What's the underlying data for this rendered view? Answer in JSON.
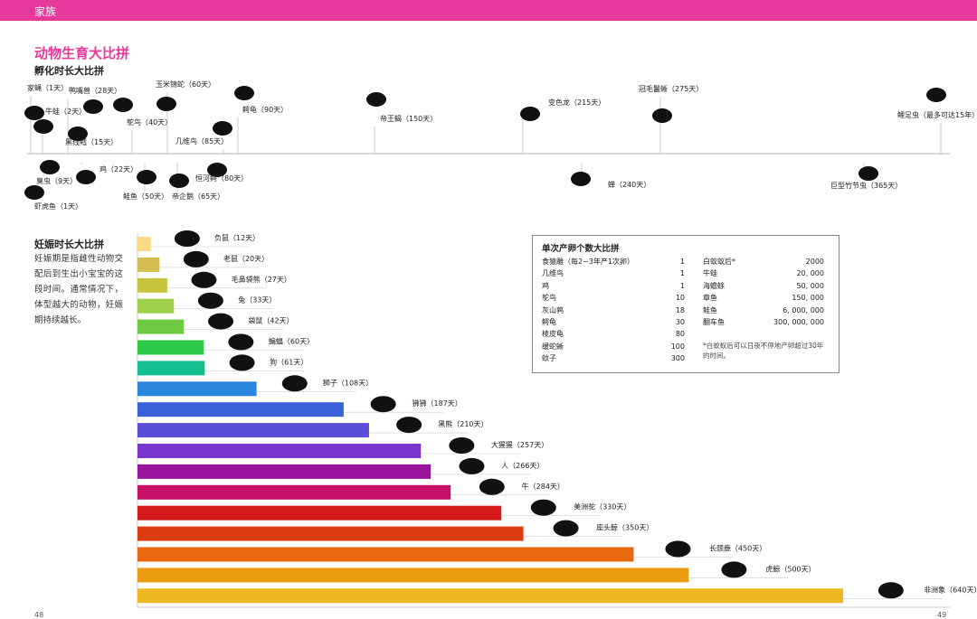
{
  "header": {
    "section": "家族",
    "title": "动物生育大比拼",
    "page_left": "48",
    "page_right": "49"
  },
  "incubation": {
    "title": "孵化时长大比拼",
    "items": [
      {
        "name": "家蝇",
        "days": "1天",
        "icon": "fly-icon"
      },
      {
        "name": "牛蛙",
        "days": "2天",
        "icon": "frog-icon"
      },
      {
        "name": "鸭嘴兽",
        "days": "28天",
        "icon": "platypus-icon"
      },
      {
        "name": "黑线鳕",
        "days": "15天",
        "icon": "fish-icon"
      },
      {
        "name": "鸵鸟",
        "days": "40天",
        "icon": "ostrich-icon"
      },
      {
        "name": "玉米锦蛇",
        "days": "60天",
        "icon": "snake-icon"
      },
      {
        "name": "几维鸟",
        "days": "85天",
        "icon": "kiwi-icon"
      },
      {
        "name": "鳄龟",
        "days": "90天",
        "icon": "turtle-icon"
      },
      {
        "name": "帝王蝎",
        "days": "150天",
        "icon": "scorpion-icon"
      },
      {
        "name": "变色龙",
        "days": "215天",
        "icon": "chameleon-icon"
      },
      {
        "name": "冠毛鬣蜥",
        "days": "275天",
        "icon": "iguana-icon"
      },
      {
        "name": "鲤足虫",
        "days": "最多可达15年",
        "icon": "shrimp-icon"
      },
      {
        "name": "臭虫",
        "days": "9天",
        "icon": "bug-icon"
      },
      {
        "name": "鸡",
        "days": "22天",
        "icon": "chicken-icon"
      },
      {
        "name": "鲑鱼",
        "days": "50天",
        "icon": "salmon-icon"
      },
      {
        "name": "帝企鹅",
        "days": "65天",
        "icon": "penguin-icon"
      },
      {
        "name": "恒河鳄",
        "days": "80天",
        "icon": "gharial-icon"
      },
      {
        "name": "蝉",
        "days": "240天",
        "icon": "cicada-icon"
      },
      {
        "name": "巨型竹节虫",
        "days": "365天",
        "icon": "stick-insect-icon"
      },
      {
        "name": "虾虎鱼",
        "days": "1天",
        "icon": "goby-icon"
      }
    ]
  },
  "gestation": {
    "title": "妊娠时长大比拼",
    "description": "妊娠期是指雌性动物交配后到生出小宝宝的这段时间。通常情况下，体型越大的动物，妊娠期持续越长。"
  },
  "chart_data": {
    "type": "bar",
    "orientation": "horizontal",
    "title": "妊娠时长大比拼",
    "categories": [
      "负鼠",
      "老鼠",
      "毛鼻袋熊",
      "兔",
      "袋鼠",
      "蝙蝠",
      "狗",
      "狮子",
      "狒狒",
      "黑熊",
      "大猩猩",
      "人",
      "牛",
      "美洲驼",
      "座头鲸",
      "长颈鹿",
      "虎鲸",
      "非洲象"
    ],
    "values": [
      12,
      20,
      27,
      33,
      42,
      60,
      61,
      108,
      187,
      210,
      257,
      266,
      284,
      330,
      350,
      450,
      500,
      640
    ],
    "labels": [
      "负鼠（12天）",
      "老鼠（20天）",
      "毛鼻袋熊（27天）",
      "兔（33天）",
      "袋鼠（42天）",
      "蝙蝠（60天）",
      "狗（61天）",
      "狮子（108天）",
      "狒狒（187天）",
      "黑熊（210天）",
      "大猩猩（257天）",
      "人（266天）",
      "牛（284天）",
      "美洲驼（330天）",
      "座头鲸（350天）",
      "长颈鹿（450天）",
      "虎鲸（500天）",
      "非洲象（640天）"
    ],
    "colors": [
      "#fbd883",
      "#d6bd52",
      "#c5c53b",
      "#9fd04a",
      "#6dc93f",
      "#2fc94a",
      "#13bf8e",
      "#2a86dc",
      "#3a62d8",
      "#5a4dd8",
      "#7a35cf",
      "#98149c",
      "#c70f6a",
      "#d51a1c",
      "#dd3c12",
      "#e8680f",
      "#ea9c10",
      "#f0b820"
    ],
    "unit": "天"
  },
  "eggs": {
    "title": "单次产卵个数大比拼",
    "left": [
      {
        "name": "食猿雕（每2~3年产1次卵）",
        "value": "1"
      },
      {
        "name": "几维鸟",
        "value": "1"
      },
      {
        "name": "鸡",
        "value": "1"
      },
      {
        "name": "鸵鸟",
        "value": "10"
      },
      {
        "name": "灰山鹑",
        "value": "18"
      },
      {
        "name": "鳄龟",
        "value": "30"
      },
      {
        "name": "棱皮龟",
        "value": "80"
      },
      {
        "name": "缓蛇蜥",
        "value": "100"
      },
      {
        "name": "蚊子",
        "value": "300"
      }
    ],
    "right": [
      {
        "name": "白蚁蚁后*",
        "value": "2000"
      },
      {
        "name": "牛蛙",
        "value": "20, 000"
      },
      {
        "name": "海蟾蜍",
        "value": "50, 000"
      },
      {
        "name": "章鱼",
        "value": "150, 000"
      },
      {
        "name": "鲑鱼",
        "value": "6, 000, 000"
      },
      {
        "name": "翻车鱼",
        "value": "300, 000, 000"
      }
    ],
    "note": "*白蚁蚁后可以日夜不停地产卵超过30年的时间。"
  }
}
